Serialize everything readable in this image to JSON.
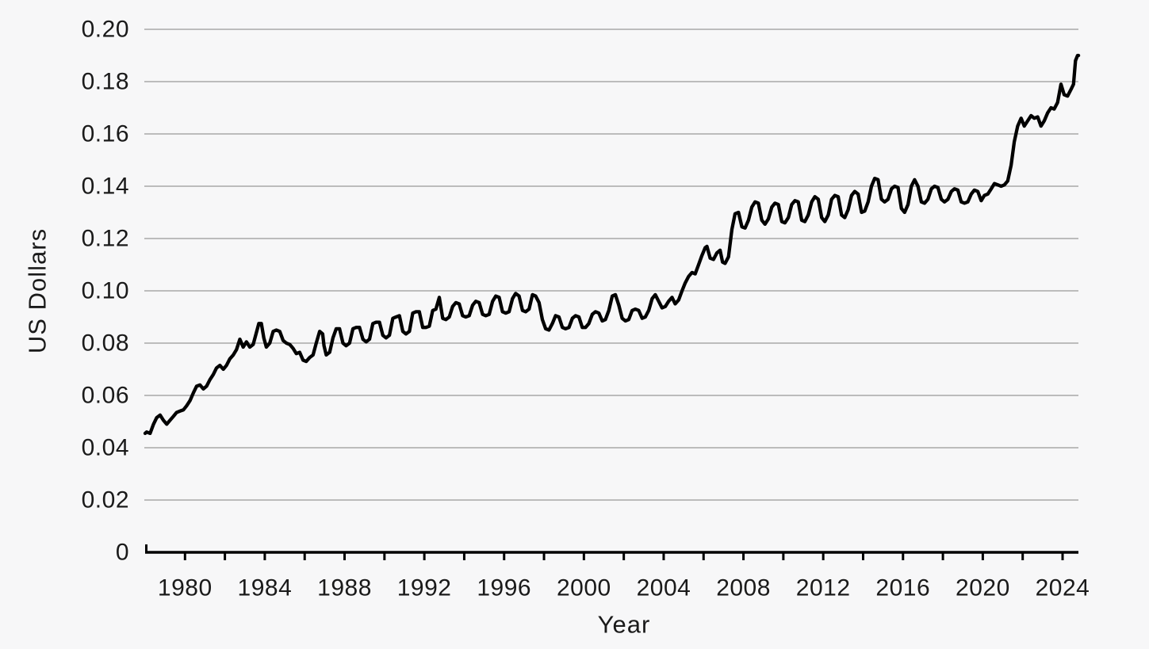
{
  "colors": {
    "background": "#f7f7f8",
    "line": "#000000",
    "grid": "#a8a8a8",
    "axis": "#000000",
    "text": "#1a1a1a"
  },
  "chart_data": {
    "type": "line",
    "title": "",
    "xlabel": "Year",
    "ylabel": "US Dollars",
    "xlim": [
      1978,
      2024.83
    ],
    "ylim": [
      0,
      0.2
    ],
    "grid": "horizontal-only",
    "legend": "none",
    "y_ticks": [
      0,
      0.02,
      0.04,
      0.06,
      0.08,
      0.1,
      0.12,
      0.14,
      0.16,
      0.18,
      0.2
    ],
    "y_tick_labels": [
      "0",
      "0.02",
      "0.04",
      "0.06",
      "0.08",
      "0.10",
      "0.12",
      "0.14",
      "0.16",
      "0.18",
      "0.20"
    ],
    "x_tick_years_minor": [
      1980,
      1982,
      1984,
      1986,
      1988,
      1990,
      1992,
      1994,
      1996,
      1998,
      2000,
      2002,
      2004,
      2006,
      2008,
      2010,
      2012,
      2014,
      2016,
      2018,
      2020,
      2022,
      2024
    ],
    "x_tick_years_labeled": [
      1980,
      1984,
      1988,
      1992,
      1996,
      2000,
      2004,
      2008,
      2012,
      2016,
      2020,
      2024
    ],
    "series": [
      {
        "points": [
          [
            1978.0,
            0.0455
          ],
          [
            1978.08,
            0.046
          ],
          [
            1978.25,
            0.0455
          ],
          [
            1978.42,
            0.049
          ],
          [
            1978.58,
            0.0515
          ],
          [
            1978.75,
            0.0525
          ],
          [
            1978.92,
            0.0505
          ],
          [
            1979.08,
            0.049
          ],
          [
            1979.25,
            0.0505
          ],
          [
            1979.42,
            0.052
          ],
          [
            1979.58,
            0.0535
          ],
          [
            1979.75,
            0.054
          ],
          [
            1979.92,
            0.0545
          ],
          [
            1980.08,
            0.056
          ],
          [
            1980.25,
            0.058
          ],
          [
            1980.42,
            0.061
          ],
          [
            1980.58,
            0.0635
          ],
          [
            1980.75,
            0.064
          ],
          [
            1980.92,
            0.0625
          ],
          [
            1981.08,
            0.0635
          ],
          [
            1981.25,
            0.066
          ],
          [
            1981.42,
            0.068
          ],
          [
            1981.58,
            0.0705
          ],
          [
            1981.75,
            0.0715
          ],
          [
            1981.92,
            0.07
          ],
          [
            1982.08,
            0.0715
          ],
          [
            1982.25,
            0.074
          ],
          [
            1982.42,
            0.0755
          ],
          [
            1982.58,
            0.0775
          ],
          [
            1982.75,
            0.0815
          ],
          [
            1982.92,
            0.0785
          ],
          [
            1983.08,
            0.0805
          ],
          [
            1983.25,
            0.0785
          ],
          [
            1983.42,
            0.0795
          ],
          [
            1983.58,
            0.084
          ],
          [
            1983.7,
            0.0875
          ],
          [
            1983.83,
            0.0875
          ],
          [
            1983.95,
            0.082
          ],
          [
            1984.08,
            0.0785
          ],
          [
            1984.25,
            0.08
          ],
          [
            1984.42,
            0.0845
          ],
          [
            1984.58,
            0.085
          ],
          [
            1984.75,
            0.0845
          ],
          [
            1984.92,
            0.081
          ],
          [
            1985.08,
            0.08
          ],
          [
            1985.25,
            0.0795
          ],
          [
            1985.42,
            0.078
          ],
          [
            1985.58,
            0.076
          ],
          [
            1985.75,
            0.0765
          ],
          [
            1985.92,
            0.0735
          ],
          [
            1986.08,
            0.073
          ],
          [
            1986.25,
            0.0745
          ],
          [
            1986.42,
            0.0755
          ],
          [
            1986.58,
            0.08
          ],
          [
            1986.75,
            0.0845
          ],
          [
            1986.9,
            0.0835
          ],
          [
            1986.97,
            0.079
          ],
          [
            1987.08,
            0.0755
          ],
          [
            1987.25,
            0.0765
          ],
          [
            1987.42,
            0.082
          ],
          [
            1987.58,
            0.0855
          ],
          [
            1987.75,
            0.0855
          ],
          [
            1987.92,
            0.08
          ],
          [
            1988.08,
            0.079
          ],
          [
            1988.25,
            0.08
          ],
          [
            1988.42,
            0.0855
          ],
          [
            1988.58,
            0.086
          ],
          [
            1988.75,
            0.086
          ],
          [
            1988.92,
            0.0815
          ],
          [
            1989.08,
            0.0805
          ],
          [
            1989.25,
            0.0815
          ],
          [
            1989.42,
            0.0875
          ],
          [
            1989.58,
            0.088
          ],
          [
            1989.75,
            0.088
          ],
          [
            1989.92,
            0.083
          ],
          [
            1990.08,
            0.082
          ],
          [
            1990.25,
            0.083
          ],
          [
            1990.42,
            0.0895
          ],
          [
            1990.58,
            0.09
          ],
          [
            1990.75,
            0.0905
          ],
          [
            1990.92,
            0.0845
          ],
          [
            1991.08,
            0.0835
          ],
          [
            1991.25,
            0.0845
          ],
          [
            1991.42,
            0.0915
          ],
          [
            1991.58,
            0.092
          ],
          [
            1991.75,
            0.092
          ],
          [
            1991.92,
            0.086
          ],
          [
            1992.08,
            0.086
          ],
          [
            1992.25,
            0.0865
          ],
          [
            1992.42,
            0.0925
          ],
          [
            1992.58,
            0.093
          ],
          [
            1992.75,
            0.0975
          ],
          [
            1992.92,
            0.0895
          ],
          [
            1993.08,
            0.089
          ],
          [
            1993.25,
            0.09
          ],
          [
            1993.42,
            0.094
          ],
          [
            1993.58,
            0.0955
          ],
          [
            1993.75,
            0.095
          ],
          [
            1993.92,
            0.0905
          ],
          [
            1994.08,
            0.09
          ],
          [
            1994.25,
            0.0905
          ],
          [
            1994.42,
            0.0945
          ],
          [
            1994.58,
            0.096
          ],
          [
            1994.75,
            0.0955
          ],
          [
            1994.92,
            0.091
          ],
          [
            1995.08,
            0.0905
          ],
          [
            1995.25,
            0.091
          ],
          [
            1995.42,
            0.096
          ],
          [
            1995.58,
            0.098
          ],
          [
            1995.75,
            0.0975
          ],
          [
            1995.92,
            0.092
          ],
          [
            1996.08,
            0.0915
          ],
          [
            1996.25,
            0.092
          ],
          [
            1996.42,
            0.097
          ],
          [
            1996.58,
            0.099
          ],
          [
            1996.75,
            0.098
          ],
          [
            1996.92,
            0.0925
          ],
          [
            1997.08,
            0.092
          ],
          [
            1997.25,
            0.093
          ],
          [
            1997.42,
            0.0985
          ],
          [
            1997.58,
            0.098
          ],
          [
            1997.75,
            0.0955
          ],
          [
            1997.92,
            0.089
          ],
          [
            1998.08,
            0.0855
          ],
          [
            1998.25,
            0.085
          ],
          [
            1998.42,
            0.0875
          ],
          [
            1998.58,
            0.0905
          ],
          [
            1998.75,
            0.09
          ],
          [
            1998.92,
            0.086
          ],
          [
            1999.08,
            0.0855
          ],
          [
            1999.25,
            0.086
          ],
          [
            1999.42,
            0.0895
          ],
          [
            1999.58,
            0.0905
          ],
          [
            1999.75,
            0.09
          ],
          [
            1999.92,
            0.086
          ],
          [
            2000.08,
            0.086
          ],
          [
            2000.25,
            0.0875
          ],
          [
            2000.42,
            0.091
          ],
          [
            2000.58,
            0.092
          ],
          [
            2000.75,
            0.0915
          ],
          [
            2000.92,
            0.0885
          ],
          [
            2001.08,
            0.089
          ],
          [
            2001.25,
            0.0925
          ],
          [
            2001.42,
            0.098
          ],
          [
            2001.58,
            0.0985
          ],
          [
            2001.75,
            0.0945
          ],
          [
            2001.92,
            0.0895
          ],
          [
            2002.08,
            0.0885
          ],
          [
            2002.25,
            0.089
          ],
          [
            2002.42,
            0.0925
          ],
          [
            2002.58,
            0.093
          ],
          [
            2002.75,
            0.0925
          ],
          [
            2002.92,
            0.0895
          ],
          [
            2003.08,
            0.09
          ],
          [
            2003.25,
            0.0925
          ],
          [
            2003.42,
            0.097
          ],
          [
            2003.58,
            0.0985
          ],
          [
            2003.75,
            0.096
          ],
          [
            2003.92,
            0.0935
          ],
          [
            2004.08,
            0.094
          ],
          [
            2004.25,
            0.096
          ],
          [
            2004.42,
            0.0975
          ],
          [
            2004.58,
            0.095
          ],
          [
            2004.75,
            0.0965
          ],
          [
            2004.92,
            0.1
          ],
          [
            2005.08,
            0.103
          ],
          [
            2005.25,
            0.1055
          ],
          [
            2005.42,
            0.107
          ],
          [
            2005.58,
            0.1065
          ],
          [
            2005.75,
            0.11
          ],
          [
            2005.92,
            0.1135
          ],
          [
            2006.08,
            0.1165
          ],
          [
            2006.17,
            0.117
          ],
          [
            2006.33,
            0.1125
          ],
          [
            2006.5,
            0.112
          ],
          [
            2006.67,
            0.1145
          ],
          [
            2006.83,
            0.1155
          ],
          [
            2006.95,
            0.111
          ],
          [
            2007.08,
            0.1105
          ],
          [
            2007.25,
            0.113
          ],
          [
            2007.42,
            0.1235
          ],
          [
            2007.58,
            0.1295
          ],
          [
            2007.75,
            0.13
          ],
          [
            2007.92,
            0.1245
          ],
          [
            2008.08,
            0.124
          ],
          [
            2008.25,
            0.127
          ],
          [
            2008.42,
            0.132
          ],
          [
            2008.58,
            0.134
          ],
          [
            2008.75,
            0.1335
          ],
          [
            2008.92,
            0.127
          ],
          [
            2009.08,
            0.1255
          ],
          [
            2009.25,
            0.1275
          ],
          [
            2009.42,
            0.132
          ],
          [
            2009.58,
            0.1335
          ],
          [
            2009.75,
            0.133
          ],
          [
            2009.92,
            0.1265
          ],
          [
            2010.08,
            0.126
          ],
          [
            2010.25,
            0.128
          ],
          [
            2010.42,
            0.133
          ],
          [
            2010.58,
            0.1345
          ],
          [
            2010.75,
            0.134
          ],
          [
            2010.92,
            0.127
          ],
          [
            2011.08,
            0.1265
          ],
          [
            2011.25,
            0.129
          ],
          [
            2011.42,
            0.134
          ],
          [
            2011.58,
            0.136
          ],
          [
            2011.75,
            0.135
          ],
          [
            2011.92,
            0.128
          ],
          [
            2012.08,
            0.1265
          ],
          [
            2012.25,
            0.129
          ],
          [
            2012.42,
            0.135
          ],
          [
            2012.58,
            0.1365
          ],
          [
            2012.75,
            0.136
          ],
          [
            2012.92,
            0.129
          ],
          [
            2013.08,
            0.128
          ],
          [
            2013.25,
            0.131
          ],
          [
            2013.42,
            0.1365
          ],
          [
            2013.58,
            0.138
          ],
          [
            2013.75,
            0.137
          ],
          [
            2013.92,
            0.13
          ],
          [
            2014.08,
            0.1305
          ],
          [
            2014.25,
            0.134
          ],
          [
            2014.42,
            0.14
          ],
          [
            2014.58,
            0.143
          ],
          [
            2014.75,
            0.1425
          ],
          [
            2014.92,
            0.135
          ],
          [
            2015.08,
            0.134
          ],
          [
            2015.25,
            0.135
          ],
          [
            2015.42,
            0.139
          ],
          [
            2015.58,
            0.14
          ],
          [
            2015.75,
            0.1395
          ],
          [
            2015.92,
            0.1315
          ],
          [
            2016.08,
            0.13
          ],
          [
            2016.25,
            0.133
          ],
          [
            2016.42,
            0.14
          ],
          [
            2016.58,
            0.1425
          ],
          [
            2016.75,
            0.14
          ],
          [
            2016.92,
            0.134
          ],
          [
            2017.08,
            0.1335
          ],
          [
            2017.25,
            0.135
          ],
          [
            2017.42,
            0.139
          ],
          [
            2017.58,
            0.14
          ],
          [
            2017.75,
            0.1395
          ],
          [
            2017.92,
            0.135
          ],
          [
            2018.08,
            0.134
          ],
          [
            2018.25,
            0.135
          ],
          [
            2018.42,
            0.138
          ],
          [
            2018.58,
            0.139
          ],
          [
            2018.75,
            0.1385
          ],
          [
            2018.92,
            0.134
          ],
          [
            2019.08,
            0.1335
          ],
          [
            2019.25,
            0.134
          ],
          [
            2019.42,
            0.137
          ],
          [
            2019.58,
            0.1385
          ],
          [
            2019.75,
            0.138
          ],
          [
            2019.92,
            0.1345
          ],
          [
            2020.08,
            0.1365
          ],
          [
            2020.25,
            0.137
          ],
          [
            2020.42,
            0.139
          ],
          [
            2020.58,
            0.141
          ],
          [
            2020.75,
            0.1405
          ],
          [
            2020.92,
            0.14
          ],
          [
            2021.08,
            0.1405
          ],
          [
            2021.25,
            0.142
          ],
          [
            2021.42,
            0.148
          ],
          [
            2021.58,
            0.157
          ],
          [
            2021.75,
            0.163
          ],
          [
            2021.92,
            0.166
          ],
          [
            2022.08,
            0.163
          ],
          [
            2022.25,
            0.165
          ],
          [
            2022.42,
            0.167
          ],
          [
            2022.58,
            0.166
          ],
          [
            2022.75,
            0.1665
          ],
          [
            2022.92,
            0.163
          ],
          [
            2023.08,
            0.165
          ],
          [
            2023.25,
            0.168
          ],
          [
            2023.42,
            0.17
          ],
          [
            2023.58,
            0.1695
          ],
          [
            2023.75,
            0.172
          ],
          [
            2023.92,
            0.179
          ],
          [
            2024.08,
            0.175
          ],
          [
            2024.25,
            0.1745
          ],
          [
            2024.42,
            0.177
          ],
          [
            2024.55,
            0.179
          ],
          [
            2024.65,
            0.188
          ],
          [
            2024.75,
            0.19
          ],
          [
            2024.8,
            0.19
          ]
        ]
      }
    ]
  }
}
